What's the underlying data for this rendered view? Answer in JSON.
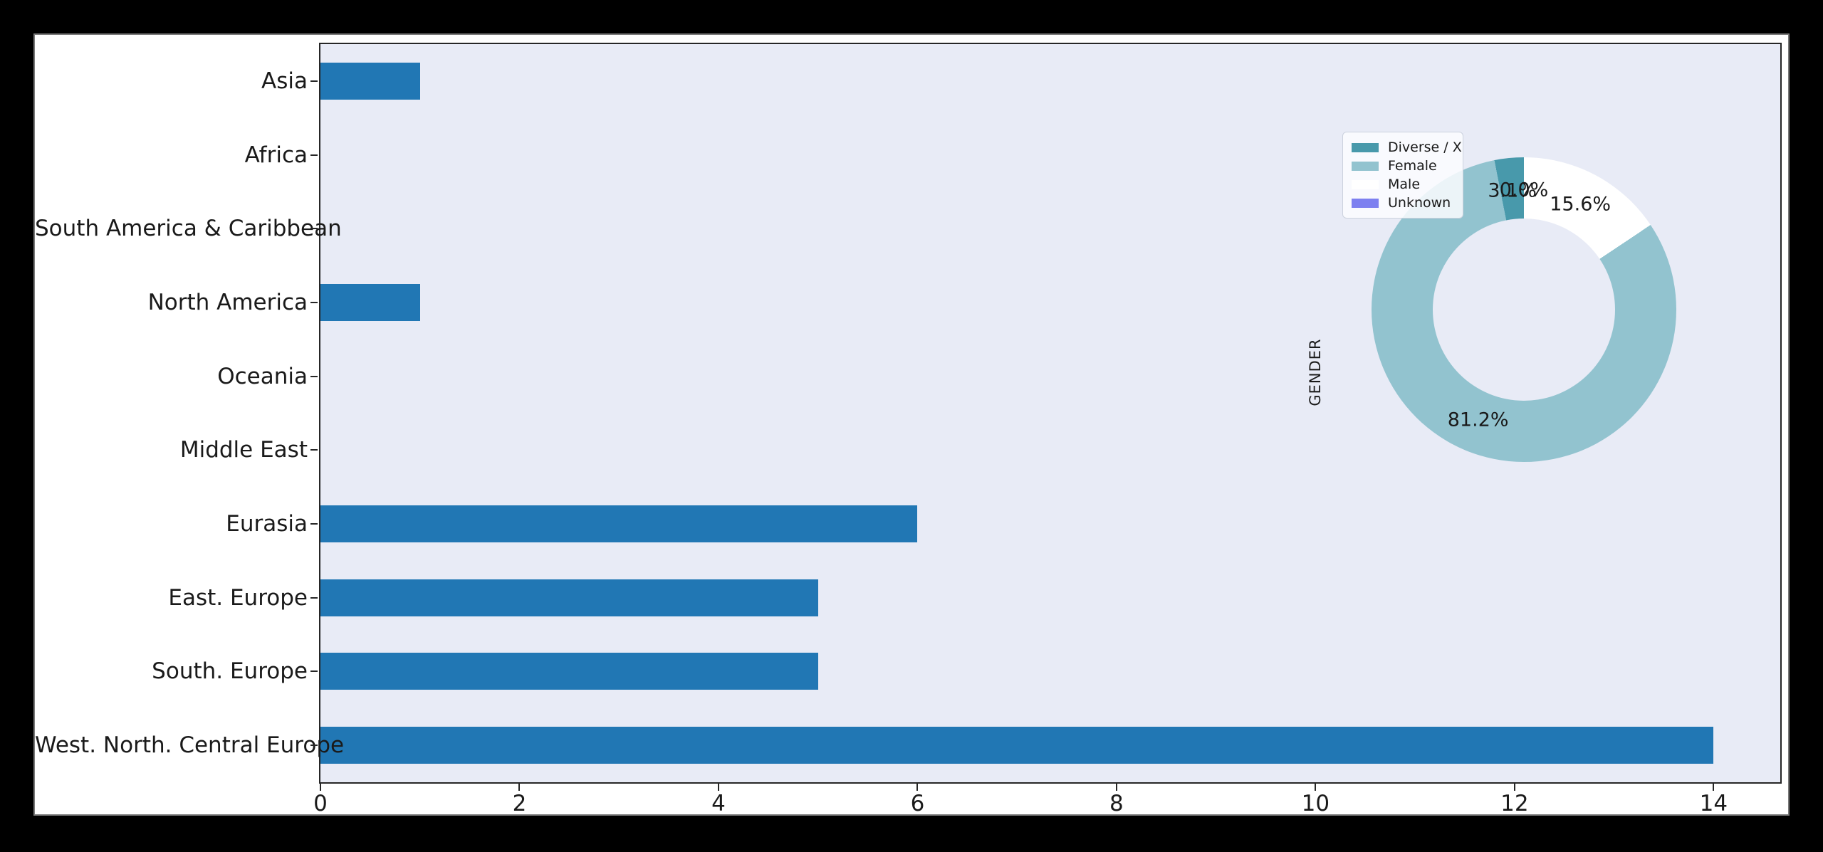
{
  "figure": {
    "page_background": "#000000",
    "figure_background": "#ffffff",
    "plot_background": "#e8ebf6",
    "spine_color": "#262626",
    "text_color": "#1a1a1a"
  },
  "chart_data": [
    {
      "type": "bar",
      "orientation": "horizontal",
      "title": "",
      "xlabel": "",
      "ylabel": "",
      "categories": [
        "Asia",
        "Africa",
        "South America & Caribbean",
        "North America",
        "Oceania",
        "Middle East",
        "Eurasia",
        "East. Europe",
        "South. Europe",
        "West. North. Central Europe"
      ],
      "values": [
        1,
        0,
        0,
        1,
        0,
        0,
        6,
        5,
        5,
        14
      ],
      "bar_color": "#2177b4",
      "xticks": [
        0,
        2,
        4,
        6,
        8,
        10,
        12,
        14
      ],
      "xlim": [
        0,
        14.67
      ],
      "grid": false
    },
    {
      "type": "pie",
      "donut": true,
      "ylabel": "GENDER",
      "start_angle": 90,
      "counterclock": true,
      "legend_position": "upper left",
      "wedges": [
        {
          "label": "Diverse / X",
          "value_percent": 3.1,
          "pct_label": "3.1%",
          "color": "#4899ab"
        },
        {
          "label": "Female",
          "value_percent": 81.2,
          "pct_label": "81.2%",
          "color": "#92c3cf"
        },
        {
          "label": "Male",
          "value_percent": 15.6,
          "pct_label": "15.6%",
          "color": "#ffffff"
        },
        {
          "label": "Unknown",
          "value_percent": 0.0,
          "pct_label": "0.0%",
          "color": "#7d80f0"
        }
      ]
    }
  ]
}
